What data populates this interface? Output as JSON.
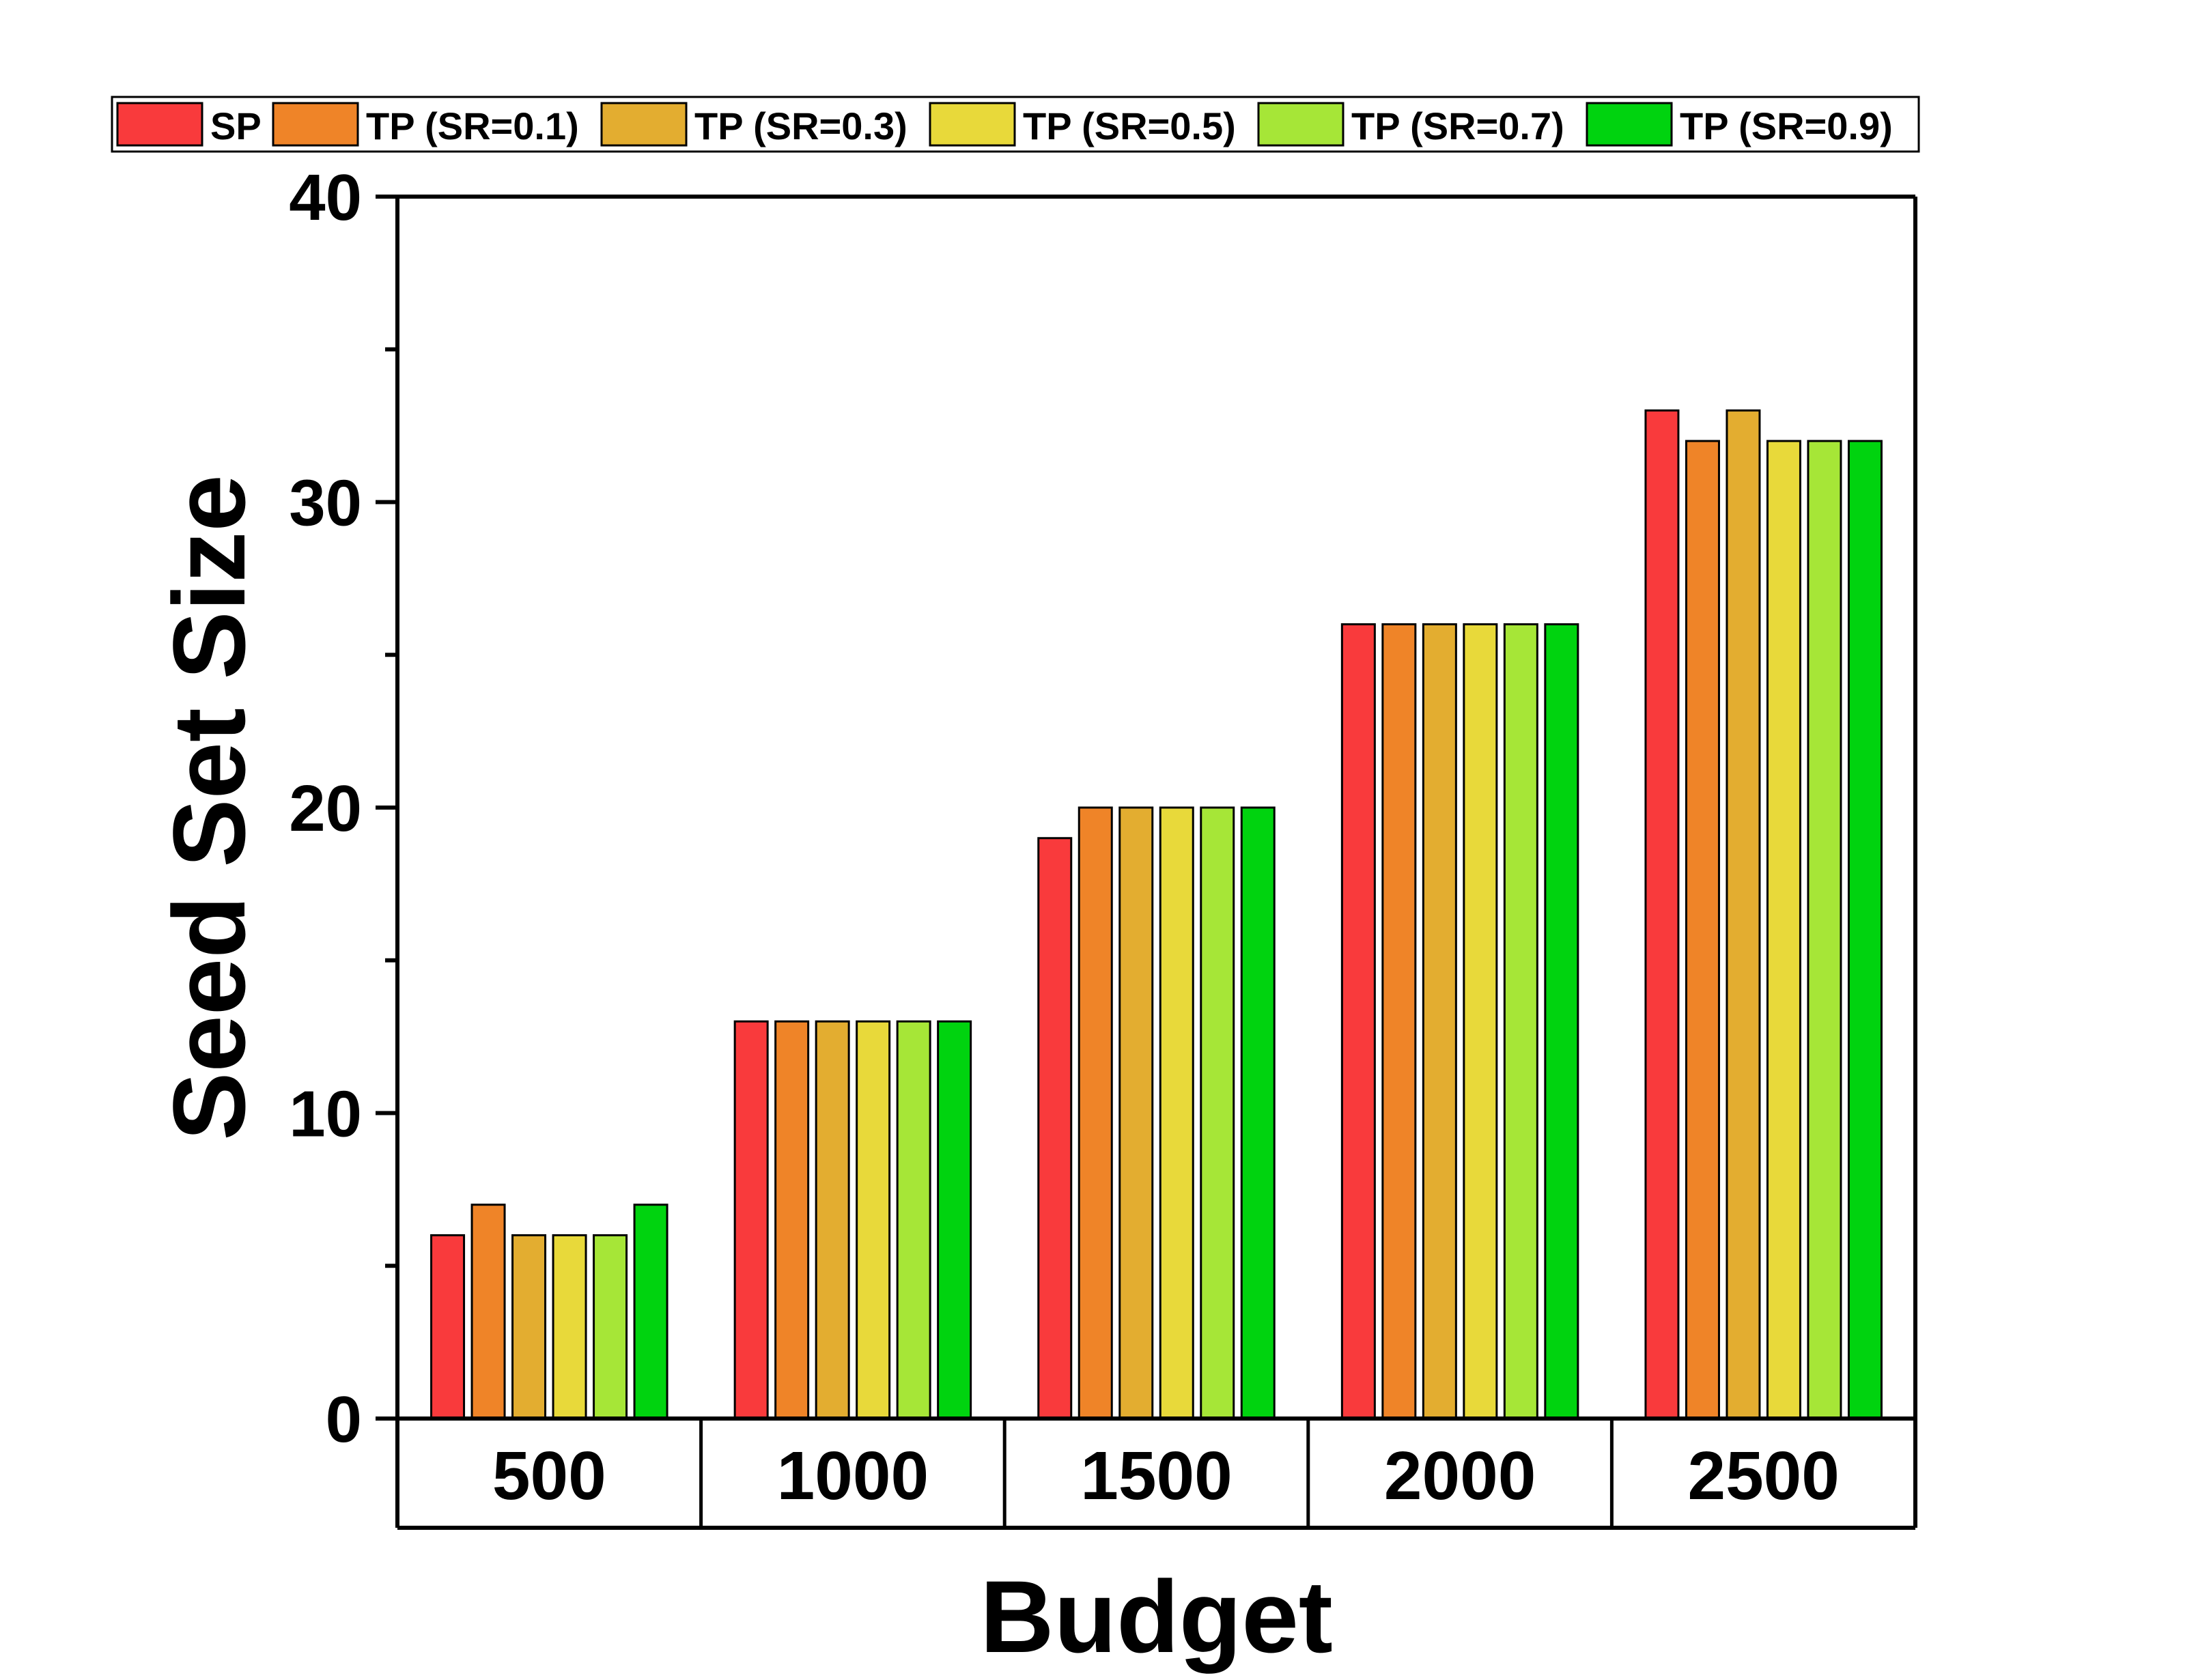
{
  "chart_data": {
    "type": "bar",
    "title": "",
    "xlabel": "Budget",
    "ylabel": "Seed Set Size",
    "categories": [
      "500",
      "1000",
      "1500",
      "2000",
      "2500"
    ],
    "ylim": [
      0,
      40
    ],
    "yticks": [
      "0",
      "10",
      "20",
      "30",
      "40"
    ],
    "grid": false,
    "legend_position": "top",
    "series": [
      {
        "name": "SP",
        "color": "#f93a3c",
        "values": [
          6,
          13,
          19,
          26,
          33
        ]
      },
      {
        "name": "TP (SR=0.1)",
        "color": "#ef8428",
        "values": [
          7,
          13,
          20,
          26,
          32
        ]
      },
      {
        "name": "TP (SR=0.3)",
        "color": "#e3ad30",
        "values": [
          6,
          13,
          20,
          26,
          33
        ]
      },
      {
        "name": "TP (SR=0.5)",
        "color": "#e8d93a",
        "values": [
          6,
          13,
          20,
          26,
          32
        ]
      },
      {
        "name": "TP (SR=0.7)",
        "color": "#a6e637",
        "values": [
          6,
          13,
          20,
          26,
          32
        ]
      },
      {
        "name": "TP (SR=0.9)",
        "color": "#00d30f",
        "values": [
          7,
          13,
          20,
          26,
          32
        ]
      }
    ]
  }
}
